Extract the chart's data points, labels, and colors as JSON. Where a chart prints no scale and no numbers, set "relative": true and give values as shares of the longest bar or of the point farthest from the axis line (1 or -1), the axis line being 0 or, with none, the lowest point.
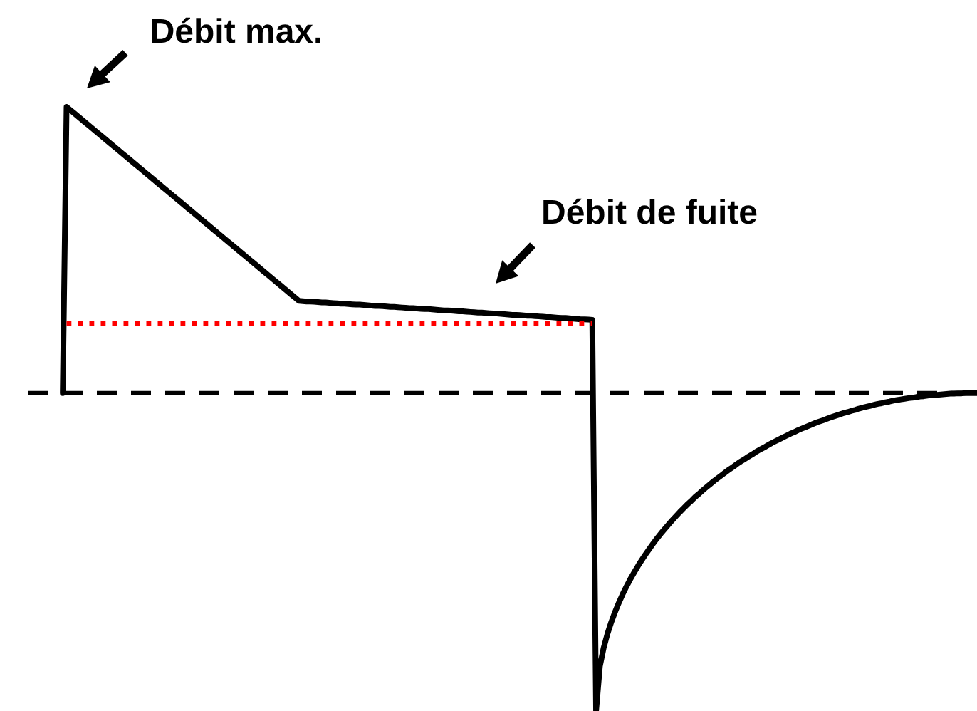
{
  "chart_data": {
    "type": "line",
    "relative": true,
    "tick_labels": false,
    "categories": [
      null,
      null,
      null,
      null,
      null,
      null,
      null,
      null,
      null,
      null,
      null,
      null,
      null,
      null,
      null,
      null,
      null,
      null,
      null,
      null,
      null,
      null,
      null,
      null,
      null,
      null,
      null,
      null,
      null,
      null,
      null,
      null,
      null,
      null,
      null,
      null,
      null,
      null,
      null,
      null,
      null,
      null,
      null,
      null,
      null,
      null,
      null,
      null,
      null,
      null,
      null,
      null,
      null,
      null,
      null,
      null,
      null,
      null,
      null,
      null,
      null,
      null,
      null,
      null,
      null,
      null,
      null,
      null,
      null,
      null,
      null,
      null,
      null,
      null,
      null,
      null,
      null,
      null,
      null,
      null,
      null,
      null,
      null,
      null,
      null,
      null,
      null,
      null,
      null,
      null,
      null,
      null,
      null,
      null,
      null,
      null,
      null,
      null,
      null,
      null,
      null,
      null,
      null,
      null,
      null,
      null,
      null,
      null,
      null,
      null,
      null,
      null,
      null,
      null,
      null,
      null,
      null,
      null,
      null,
      null,
      null,
      null,
      null,
      null,
      null,
      null,
      null,
      null,
      null,
      null,
      null,
      null,
      null,
      null,
      null,
      null,
      null,
      null,
      null,
      null,
      null,
      null,
      null,
      null,
      null,
      null,
      null,
      null,
      null,
      null,
      null,
      null,
      null,
      null,
      null,
      null,
      null,
      null,
      null,
      null,
      null,
      null,
      null,
      null,
      null,
      null,
      null,
      null,
      null,
      null,
      null,
      null,
      null,
      null,
      null,
      null,
      null,
      null,
      null,
      null,
      null,
      null,
      null,
      null,
      null,
      null,
      null,
      null,
      null,
      null,
      null,
      null,
      null,
      null,
      null,
      null,
      null,
      null,
      null,
      null,
      null,
      null,
      null,
      null,
      null,
      null,
      null,
      null,
      null,
      null,
      null,
      null,
      null,
      null,
      null,
      null,
      null,
      null,
      null,
      null,
      null,
      null,
      null,
      null,
      null,
      null,
      null,
      null,
      null,
      null,
      null,
      null,
      null,
      null,
      null,
      null,
      null,
      null,
      null,
      null,
      null,
      null,
      null,
      null,
      null,
      null,
      null,
      null,
      null,
      null
    ],
    "series": [
      {
        "color": "#000000",
        "values": [
          null,
          null,
          null,
          null,
          null,
          null,
          null,
          null,
          null,
          0,
          0.9,
          0.89,
          0.88,
          0.87,
          0.86,
          0.85,
          0.84,
          0.83,
          0.82,
          0.81,
          0.8,
          0.79,
          0.78,
          0.77,
          0.76,
          0.75,
          0.74,
          0.73,
          0.72,
          0.71,
          0.7,
          0.69,
          0.68,
          0.67,
          0.66,
          0.65,
          0.64,
          0.63,
          0.62,
          0.61,
          0.6,
          0.59,
          0.58,
          0.57,
          0.56,
          0.55,
          0.54,
          0.53,
          0.52,
          0.51,
          0.5,
          0.49,
          0.48,
          0.47,
          0.46,
          0.45,
          0.44,
          0.43,
          0.42,
          0.41,
          0.4,
          0.39,
          0.38,
          0.37,
          0.36,
          0.35,
          0.34,
          0.33,
          0.32,
          0.31,
          0.3,
          0.29,
          0.289,
          0.288,
          0.288,
          0.287,
          0.286,
          0.285,
          0.285,
          0.284,
          0.283,
          0.282,
          0.281,
          0.281,
          0.28,
          0.279,
          0.278,
          0.278,
          0.277,
          0.276,
          0.275,
          0.274,
          0.274,
          0.273,
          0.272,
          0.271,
          0.271,
          0.27,
          0.269,
          0.268,
          0.267,
          0.267,
          0.266,
          0.265,
          0.264,
          0.264,
          0.263,
          0.262,
          0.261,
          0.26,
          0.26,
          0.259,
          0.258,
          0.257,
          0.257,
          0.256,
          0.255,
          0.254,
          0.253,
          0.253,
          0.252,
          0.251,
          0.25,
          0.25,
          0.249,
          0.248,
          0.247,
          0.246,
          0.246,
          0.245,
          0.244,
          0.243,
          0.243,
          0.242,
          0.241,
          0.24,
          0.239,
          0.239,
          0.238,
          0.237,
          0.236,
          0.236,
          0.235,
          0.234,
          0.233,
          0.232,
          0.232,
          0.231,
          0.23,
          -1,
          -0.859,
          -0.801,
          -0.757,
          -0.72,
          -0.688,
          -0.659,
          -0.632,
          -0.608,
          -0.585,
          -0.564,
          -0.544,
          -0.525,
          -0.507,
          -0.49,
          -0.473,
          -0.457,
          -0.442,
          -0.428,
          -0.414,
          -0.4,
          -0.387,
          -0.374,
          -0.362,
          -0.35,
          -0.339,
          -0.327,
          -0.317,
          -0.306,
          -0.296,
          -0.286,
          -0.276,
          -0.267,
          -0.258,
          -0.249,
          -0.24,
          -0.232,
          -0.223,
          -0.215,
          -0.208,
          -0.2,
          -0.193,
          -0.185,
          -0.178,
          -0.172,
          -0.165,
          -0.158,
          -0.152,
          -0.146,
          -0.14,
          -0.134,
          -0.128,
          -0.123,
          -0.117,
          -0.112,
          -0.107,
          -0.102,
          -0.097,
          -0.092,
          -0.088,
          -0.084,
          -0.079,
          -0.075,
          -0.071,
          -0.067,
          -0.063,
          -0.06,
          -0.056,
          -0.053,
          -0.049,
          -0.046,
          -0.043,
          -0.04,
          -0.037,
          -0.034,
          -0.032,
          -0.029,
          -0.027,
          -0.024,
          -0.022,
          -0.02,
          -0.018,
          -0.016,
          -0.015,
          -0.013,
          -0.011,
          -0.01,
          -0.008,
          -0.007,
          -0.006,
          -0.005,
          -0.004,
          -0.003,
          -0.002,
          -0.002,
          -0.001,
          -0.001,
          0,
          0,
          0,
          0
        ]
      },
      {
        "color": "#ff0000",
        "line_style": "dotted",
        "values": [
          null,
          null,
          null,
          null,
          null,
          null,
          null,
          null,
          null,
          null,
          0.22,
          0.22,
          0.22,
          0.22,
          0.22,
          0.22,
          0.22,
          0.22,
          0.22,
          0.22,
          0.22,
          0.22,
          0.22,
          0.22,
          0.22,
          0.22,
          0.22,
          0.22,
          0.22,
          0.22,
          0.22,
          0.22,
          0.22,
          0.22,
          0.22,
          0.22,
          0.22,
          0.22,
          0.22,
          0.22,
          0.22,
          0.22,
          0.22,
          0.22,
          0.22,
          0.22,
          0.22,
          0.22,
          0.22,
          0.22,
          0.22,
          0.22,
          0.22,
          0.22,
          0.22,
          0.22,
          0.22,
          0.22,
          0.22,
          0.22,
          0.22,
          0.22,
          0.22,
          0.22,
          0.22,
          0.22,
          0.22,
          0.22,
          0.22,
          0.22,
          0.22,
          0.22,
          0.22,
          0.22,
          0.22,
          0.22,
          0.22,
          0.22,
          0.22,
          0.22,
          0.22,
          0.22,
          0.22,
          0.22,
          0.22,
          0.22,
          0.22,
          0.22,
          0.22,
          0.22,
          0.22,
          0.22,
          0.22,
          0.22,
          0.22,
          0.22,
          0.22,
          0.22,
          0.22,
          0.22,
          0.22,
          0.22,
          0.22,
          0.22,
          0.22,
          0.22,
          0.22,
          0.22,
          0.22,
          0.22,
          0.22,
          0.22,
          0.22,
          0.22,
          0.22,
          0.22,
          0.22,
          0.22,
          0.22,
          0.22,
          0.22,
          0.22,
          0.22,
          0.22,
          0.22,
          0.22,
          0.22,
          0.22,
          0.22,
          0.22,
          0.22,
          0.22,
          0.22,
          0.22,
          0.22,
          0.22,
          0.22,
          0.22,
          0.22,
          0.22,
          0.22,
          0.22,
          0.22,
          0.22,
          0.22,
          0.22,
          0.22,
          0.22,
          0.22,
          null,
          null,
          null,
          null,
          null,
          null,
          null,
          null,
          null,
          null,
          null,
          null,
          null,
          null,
          null,
          null,
          null,
          null,
          null,
          null,
          null,
          null,
          null,
          null,
          null,
          null,
          null,
          null,
          null,
          null,
          null,
          null,
          null,
          null,
          null,
          null,
          null,
          null,
          null,
          null,
          null,
          null,
          null,
          null,
          null,
          null,
          null,
          null,
          null,
          null,
          null,
          null,
          null,
          null,
          null,
          null,
          null,
          null,
          null,
          null,
          null,
          null,
          null,
          null,
          null,
          null,
          null,
          null,
          null,
          null,
          null,
          null,
          null,
          null,
          null,
          null,
          null,
          null,
          null,
          null,
          null,
          null,
          null,
          null,
          null,
          null,
          null,
          null,
          null,
          null,
          null,
          null,
          null,
          null,
          null,
          null,
          null,
          null,
          null,
          null,
          null
        ]
      }
    ],
    "ref_lines": [
      {
        "axis": "y",
        "value": 0,
        "line_style": "dashed",
        "color": "#000000"
      }
    ],
    "annotations": [
      "Débit max.",
      "Débit de fuite"
    ]
  }
}
